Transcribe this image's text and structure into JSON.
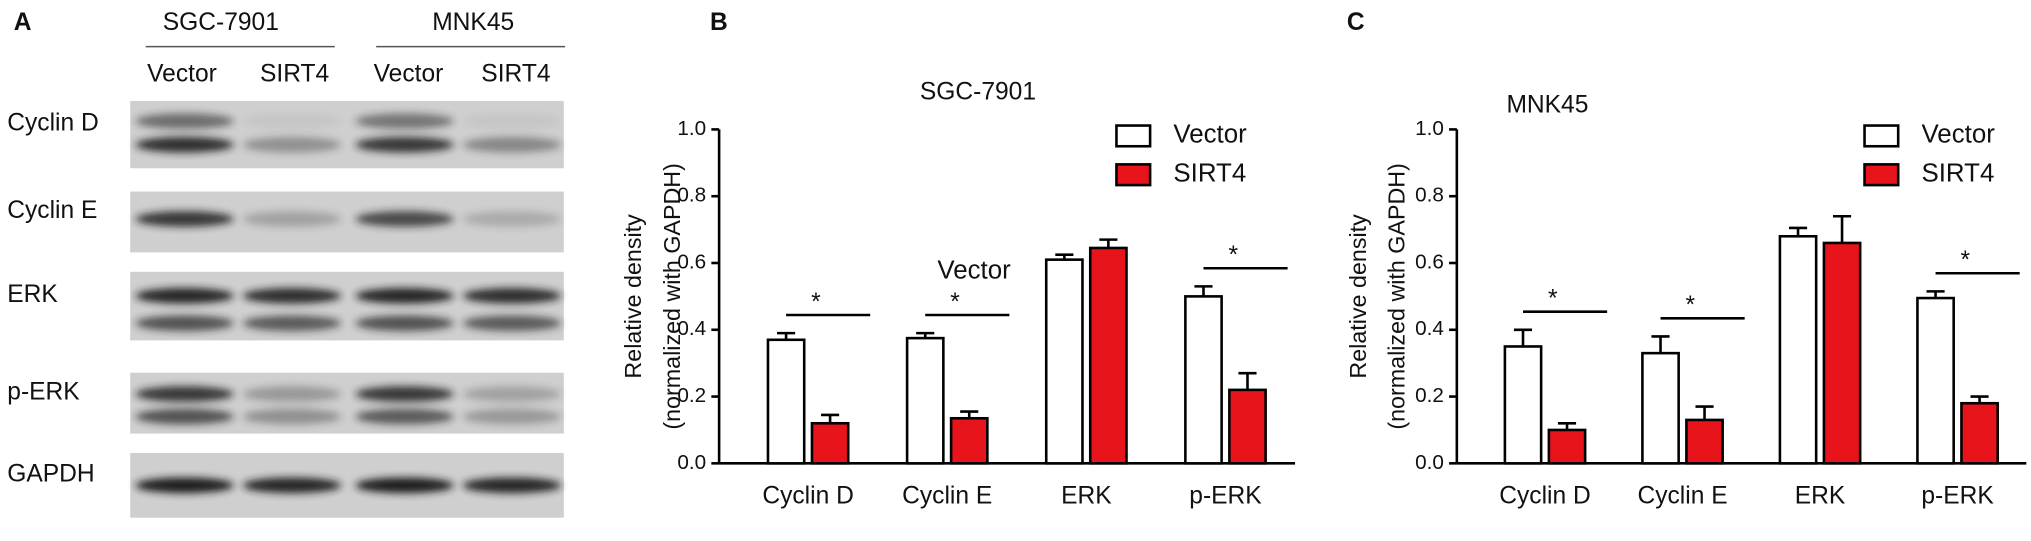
{
  "blot": {
    "panel_label": "A",
    "cell_lines": [
      "SGC-7901",
      "MNK45"
    ],
    "lanes": [
      "Vector",
      "SIRT4",
      "Vector",
      "SIRT4"
    ],
    "rows": [
      "Cyclin D",
      "Cyclin E",
      "ERK",
      "p-ERK",
      "GAPDH"
    ]
  },
  "chart_data": [
    {
      "type": "bar",
      "panel_label": "B",
      "title": "SGC-7901",
      "ylabel": [
        "Relative density",
        "(normalized with GAPDH)"
      ],
      "annotation": "Vector",
      "categories": [
        "Cyclin D",
        "Cyclin E",
        "ERK",
        "p-ERK"
      ],
      "series": [
        {
          "name": "Vector",
          "color": "#ffffff",
          "values": [
            0.37,
            0.375,
            0.61,
            0.5
          ],
          "errors": [
            0.02,
            0.015,
            0.015,
            0.03
          ]
        },
        {
          "name": "SIRT4",
          "color": "#e8141b",
          "values": [
            0.12,
            0.135,
            0.645,
            0.22
          ],
          "errors": [
            0.025,
            0.02,
            0.025,
            0.05
          ]
        }
      ],
      "significance": [
        "*",
        "*",
        null,
        "*"
      ],
      "ylim": [
        0,
        1
      ],
      "yticks": [
        {
          "value": 0,
          "label": "0.0"
        },
        0.2,
        0.4,
        0.6,
        0.8,
        {
          "value": 1,
          "label": "1.0"
        }
      ],
      "grid": false
    },
    {
      "type": "bar",
      "panel_label": "C",
      "title": "MNK45",
      "ylabel": [
        "Relative density",
        "(normalized with GAPDH)"
      ],
      "categories": [
        "Cyclin D",
        "Cyclin E",
        "ERK",
        "p-ERK"
      ],
      "series": [
        {
          "name": "Vector",
          "color": "#ffffff",
          "values": [
            0.35,
            0.33,
            0.68,
            0.495
          ],
          "errors": [
            0.05,
            0.05,
            0.025,
            0.02
          ]
        },
        {
          "name": "SIRT4",
          "color": "#e8141b",
          "values": [
            0.1,
            0.13,
            0.66,
            0.18
          ],
          "errors": [
            0.02,
            0.04,
            0.08,
            0.02
          ]
        }
      ],
      "significance": [
        "*",
        "*",
        null,
        "*"
      ],
      "ylim": [
        0,
        1
      ],
      "yticks": [
        {
          "value": 0,
          "label": "0.0"
        },
        0.2,
        0.4,
        0.6,
        0.8,
        {
          "value": 1,
          "label": "1.0"
        }
      ],
      "grid": false
    }
  ]
}
